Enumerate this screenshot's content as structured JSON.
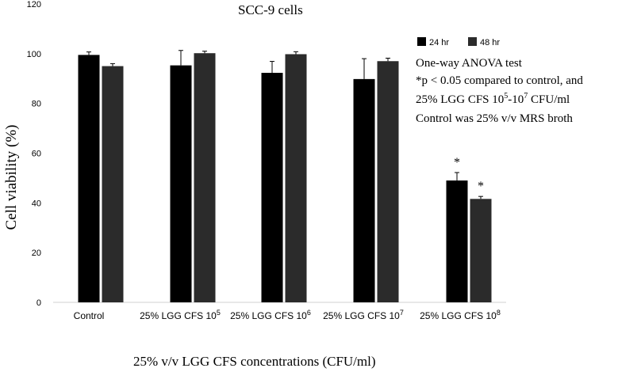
{
  "chart_data": {
    "type": "bar",
    "title": "SCC-9 cells",
    "xlabel": "25% v/v LGG CFS concentrations (CFU/ml)",
    "ylabel": "Cell viability (%)",
    "ylim": [
      0,
      120
    ],
    "yticks": [
      0,
      20,
      40,
      60,
      80,
      100,
      120
    ],
    "categories": [
      {
        "base": "Control",
        "sup": ""
      },
      {
        "base": "25% LGG CFS 10",
        "sup": "5"
      },
      {
        "base": "25% LGG CFS 10",
        "sup": "6"
      },
      {
        "base": "25% LGG CFS 10",
        "sup": "7"
      },
      {
        "base": "25% LGG CFS 10",
        "sup": "8"
      }
    ],
    "series": [
      {
        "name": "24 hr",
        "color": "#000000",
        "values": [
          99.5,
          95.3,
          92.3,
          89.8,
          49.0
        ],
        "errors": [
          1.2,
          6.0,
          4.6,
          8.2,
          3.2
        ],
        "significance": [
          "",
          "",
          "",
          "",
          "*"
        ]
      },
      {
        "name": "48 hr",
        "color": "#2b2b2b",
        "values": [
          95.0,
          100.2,
          99.8,
          97.0,
          41.6
        ],
        "errors": [
          1.0,
          0.8,
          1.0,
          1.2,
          1.0
        ],
        "significance": [
          "",
          "",
          "",
          "",
          "*"
        ]
      }
    ],
    "legend": "top-right",
    "annotation": {
      "line1": "One-way ANOVA test",
      "line2_pre": "*p < 0.05 compared to control, and",
      "line3_a": "25% LGG CFS 10",
      "line3_sup1": "5",
      "line3_b": "-10",
      "line3_sup2": "7",
      "line3_c": " CFU/ml",
      "line4": "Control was 25% v/v MRS broth"
    }
  }
}
